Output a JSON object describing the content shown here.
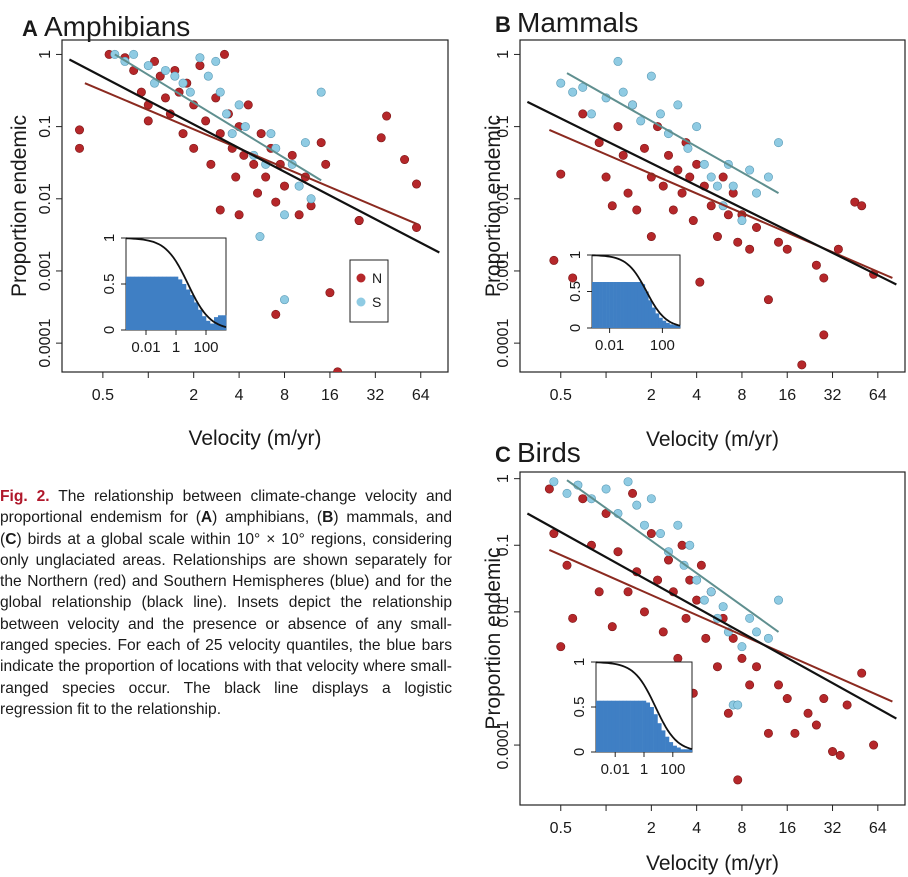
{
  "caption": {
    "fig_label": "Fig. 2.",
    "text_1": " The relationship between climate-change velocity and proportional endemism for (",
    "a": "A",
    "text_2": ") amphibians, (",
    "b": "B",
    "text_3": ") mammals, and (",
    "c": "C",
    "text_4": ") birds at a global scale within 10° × 10° regions, considering only unglaciated areas. Relationships are shown separately for the Northern (red) and Southern Hemispheres (blue) and for the global relationship (black line). Insets depict the relationship between velocity and the presence or absence of any small-ranged species. For each of 25 velocity quantiles, the blue bars indicate the proportion of locations with that velocity where small-ranged species occur. The black line displays a logistic regression fit to the relationship."
  },
  "colors": {
    "north": "#b5272a",
    "south": "#8fcbe3",
    "global_line": "#111111",
    "north_line": "#8b2a20",
    "south_line": "#5f8f8f",
    "bar": "#3f7fc4"
  },
  "chart_data": [
    {
      "panel": "A",
      "title": "Amphibians",
      "type": "scatter",
      "xlabel": "Velocity (m/yr)",
      "ylabel": "Proportion endemic",
      "x_scale": "log2",
      "y_scale": "log10",
      "x_ticks": [
        "0.5",
        "2",
        "4",
        "8",
        "16",
        "32",
        "64"
      ],
      "y_ticks": [
        "0.0001",
        "0.001",
        "0.01",
        "0.1",
        "1"
      ],
      "legend": {
        "position": "lower-right",
        "entries": [
          "N",
          "S"
        ]
      },
      "lines": {
        "global": [
          [
            0.3,
            0.85
          ],
          [
            85,
            0.0018
          ]
        ],
        "north": [
          [
            0.38,
            0.4
          ],
          [
            60,
            0.0045
          ]
        ],
        "south": [
          [
            0.6,
            1.0
          ],
          [
            14,
            0.018
          ]
        ]
      },
      "north": [
        [
          0.35,
          0.09
        ],
        [
          0.35,
          0.05
        ],
        [
          0.55,
          1
        ],
        [
          0.7,
          0.9
        ],
        [
          0.8,
          0.6
        ],
        [
          0.9,
          0.3
        ],
        [
          1,
          0.2
        ],
        [
          1,
          0.12
        ],
        [
          1.1,
          0.8
        ],
        [
          1.2,
          0.5
        ],
        [
          1.3,
          0.25
        ],
        [
          1.4,
          0.15
        ],
        [
          1.5,
          0.6
        ],
        [
          1.6,
          0.3
        ],
        [
          1.7,
          0.08
        ],
        [
          1.8,
          0.4
        ],
        [
          2,
          0.2
        ],
        [
          2,
          0.05
        ],
        [
          2.2,
          0.7
        ],
        [
          2.4,
          0.12
        ],
        [
          2.6,
          0.03
        ],
        [
          2.8,
          0.25
        ],
        [
          3,
          0.08
        ],
        [
          3,
          0.007
        ],
        [
          3.2,
          1
        ],
        [
          3.4,
          0.15
        ],
        [
          3.6,
          0.05
        ],
        [
          3.8,
          0.02
        ],
        [
          4,
          0.1
        ],
        [
          4,
          0.006
        ],
        [
          4.3,
          0.04
        ],
        [
          4.6,
          0.2
        ],
        [
          5,
          0.03
        ],
        [
          5.3,
          0.012
        ],
        [
          5.6,
          0.08
        ],
        [
          6,
          0.02
        ],
        [
          6.5,
          0.05
        ],
        [
          7,
          0.009
        ],
        [
          7,
          0.00025
        ],
        [
          7.5,
          0.03
        ],
        [
          8,
          0.015
        ],
        [
          9,
          0.04
        ],
        [
          10,
          0.006
        ],
        [
          10,
          3e-05
        ],
        [
          11,
          0.02
        ],
        [
          12,
          0.008
        ],
        [
          14,
          0.06
        ],
        [
          15,
          0.03
        ],
        [
          16,
          0.0005
        ],
        [
          18,
          4e-05
        ],
        [
          25,
          0.005
        ],
        [
          25,
          0.005
        ],
        [
          35,
          0.07
        ],
        [
          38,
          0.14
        ],
        [
          50,
          0.035
        ],
        [
          60,
          0.016
        ],
        [
          60,
          0.004
        ]
      ],
      "south": [
        [
          0.6,
          1
        ],
        [
          0.7,
          0.8
        ],
        [
          0.8,
          1
        ],
        [
          1,
          0.7
        ],
        [
          1.1,
          0.4
        ],
        [
          1.3,
          0.6
        ],
        [
          1.5,
          0.5
        ],
        [
          1.7,
          0.4
        ],
        [
          1.9,
          0.3
        ],
        [
          2.2,
          0.9
        ],
        [
          2.5,
          0.5
        ],
        [
          2.8,
          0.8
        ],
        [
          3,
          0.3
        ],
        [
          3.3,
          0.15
        ],
        [
          3.6,
          0.08
        ],
        [
          4,
          0.2
        ],
        [
          4.4,
          0.1
        ],
        [
          5,
          0.04
        ],
        [
          5.5,
          0.003
        ],
        [
          6,
          0.03
        ],
        [
          6.5,
          0.08
        ],
        [
          7,
          0.05
        ],
        [
          8,
          0.006
        ],
        [
          8,
          0.0004
        ],
        [
          9,
          0.03
        ],
        [
          10,
          0.015
        ],
        [
          11,
          0.06
        ],
        [
          12,
          0.01
        ],
        [
          14,
          0.3
        ]
      ],
      "inset": {
        "y_ticks": [
          "0",
          "0.5",
          "1"
        ],
        "x_ticks": [
          "0.01",
          "1",
          "100"
        ],
        "bars": [
          0.58,
          0.58,
          0.58,
          0.58,
          0.58,
          0.58,
          0.58,
          0.58,
          0.58,
          0.58,
          0.58,
          0.58,
          0.58,
          0.55,
          0.5,
          0.44,
          0.38,
          0.3,
          0.22,
          0.15,
          0.1,
          0.07,
          0.14,
          0.16,
          0.16
        ]
      }
    },
    {
      "panel": "B",
      "title": "Mammals",
      "type": "scatter",
      "xlabel": "Velocity (m/yr)",
      "ylabel": "Proportion endemic",
      "x_scale": "log2",
      "y_scale": "log10",
      "x_ticks": [
        "0.5",
        "2",
        "4",
        "8",
        "16",
        "32",
        "64"
      ],
      "y_ticks": [
        "0.0001",
        "0.001",
        "0.01",
        "0.1",
        "1"
      ],
      "lines": {
        "global": [
          [
            0.3,
            0.22
          ],
          [
            85,
            0.00065
          ]
        ],
        "north": [
          [
            0.42,
            0.09
          ],
          [
            80,
            0.0008
          ]
        ],
        "south": [
          [
            0.55,
            0.55
          ],
          [
            14,
            0.012
          ]
        ]
      },
      "north": [
        [
          0.45,
          0.0014
        ],
        [
          0.5,
          0.022
        ],
        [
          0.6,
          0.0008
        ],
        [
          0.7,
          0.15
        ],
        [
          0.9,
          0.06
        ],
        [
          1,
          0.02
        ],
        [
          1.1,
          0.008
        ],
        [
          1.2,
          0.1
        ],
        [
          1.3,
          0.04
        ],
        [
          1.4,
          0.012
        ],
        [
          1.5,
          0.2
        ],
        [
          1.6,
          0.007
        ],
        [
          1.8,
          0.05
        ],
        [
          2,
          0.02
        ],
        [
          2,
          0.003
        ],
        [
          2.2,
          0.1
        ],
        [
          2.4,
          0.015
        ],
        [
          2.6,
          0.04
        ],
        [
          2.8,
          0.007
        ],
        [
          3,
          0.025
        ],
        [
          3.2,
          0.012
        ],
        [
          3.4,
          0.06
        ],
        [
          3.6,
          0.02
        ],
        [
          3.8,
          0.005
        ],
        [
          4,
          0.03
        ],
        [
          4.2,
          0.0007
        ],
        [
          4.5,
          0.015
        ],
        [
          5,
          0.008
        ],
        [
          5.5,
          0.003
        ],
        [
          6,
          0.02
        ],
        [
          6.5,
          0.006
        ],
        [
          7,
          0.012
        ],
        [
          7.5,
          0.0025
        ],
        [
          8,
          0.006
        ],
        [
          9,
          0.002
        ],
        [
          10,
          0.004
        ],
        [
          12,
          0.0004
        ],
        [
          14,
          0.0025
        ],
        [
          16,
          0.002
        ],
        [
          20,
          5e-05
        ],
        [
          25,
          0.0012
        ],
        [
          28,
          0.0008
        ],
        [
          28,
          0.00013
        ],
        [
          35,
          0.002
        ],
        [
          45,
          0.009
        ],
        [
          50,
          0.008
        ],
        [
          60,
          0.0009
        ]
      ],
      "south": [
        [
          0.5,
          0.4
        ],
        [
          0.6,
          0.3
        ],
        [
          0.7,
          0.35
        ],
        [
          0.8,
          0.15
        ],
        [
          1,
          0.25
        ],
        [
          1.2,
          0.8
        ],
        [
          1.3,
          0.3
        ],
        [
          1.5,
          0.2
        ],
        [
          1.7,
          0.12
        ],
        [
          2,
          0.5
        ],
        [
          2.3,
          0.15
        ],
        [
          2.6,
          0.08
        ],
        [
          3,
          0.2
        ],
        [
          3.5,
          0.05
        ],
        [
          4,
          0.1
        ],
        [
          4.5,
          0.03
        ],
        [
          5,
          0.02
        ],
        [
          5.5,
          0.015
        ],
        [
          6,
          0.008
        ],
        [
          6.5,
          0.03
        ],
        [
          7,
          0.015
        ],
        [
          8,
          0.005
        ],
        [
          9,
          0.025
        ],
        [
          10,
          0.012
        ],
        [
          12,
          0.02
        ],
        [
          14,
          0.06
        ]
      ],
      "inset": {
        "y_ticks": [
          "0",
          "0.5",
          "1"
        ],
        "x_ticks": [
          "0.01",
          "100"
        ],
        "bars": [
          0.63,
          0.63,
          0.63,
          0.63,
          0.63,
          0.63,
          0.63,
          0.63,
          0.63,
          0.63,
          0.63,
          0.63,
          0.63,
          0.63,
          0.6,
          0.5,
          0.38,
          0.28,
          0.2,
          0.14,
          0.1,
          0.07,
          0.05,
          0.04,
          0.04
        ]
      }
    },
    {
      "panel": "C",
      "title": "Birds",
      "type": "scatter",
      "xlabel": "Velocity (m/yr)",
      "ylabel": "Proportion endemic",
      "x_scale": "log2",
      "y_scale": "log10",
      "x_ticks": [
        "0.5",
        "2",
        "4",
        "8",
        "16",
        "32",
        "64"
      ],
      "y_ticks": [
        "0.0001",
        "0.01",
        "0.1",
        "1"
      ],
      "lines": {
        "global": [
          [
            0.3,
            0.3
          ],
          [
            85,
            0.00025
          ]
        ],
        "north": [
          [
            0.42,
            0.085
          ],
          [
            80,
            0.00045
          ]
        ],
        "south": [
          [
            0.55,
            0.95
          ],
          [
            14,
            0.005
          ]
        ]
      },
      "north": [
        [
          0.42,
          0.7
        ],
        [
          0.45,
          0.15
        ],
        [
          0.5,
          0.003
        ],
        [
          0.55,
          0.05
        ],
        [
          0.6,
          0.008
        ],
        [
          0.7,
          0.5
        ],
        [
          0.8,
          0.1
        ],
        [
          0.9,
          0.02
        ],
        [
          1,
          0.3
        ],
        [
          1.1,
          0.006
        ],
        [
          1.2,
          0.08
        ],
        [
          1.3,
          0.0015
        ],
        [
          1.4,
          0.02
        ],
        [
          1.5,
          0.6
        ],
        [
          1.6,
          0.04
        ],
        [
          1.8,
          0.01
        ],
        [
          2,
          0.15
        ],
        [
          2,
          0.0008
        ],
        [
          2.2,
          0.03
        ],
        [
          2.4,
          0.005
        ],
        [
          2.6,
          0.06
        ],
        [
          2.8,
          0.02
        ],
        [
          3,
          0.002
        ],
        [
          3.2,
          0.1
        ],
        [
          3.4,
          0.008
        ],
        [
          3.6,
          0.03
        ],
        [
          3.8,
          0.0006
        ],
        [
          4,
          0.015
        ],
        [
          4.3,
          0.05
        ],
        [
          4.6,
          0.004
        ],
        [
          5,
          0.02
        ],
        [
          5.5,
          0.0015
        ],
        [
          6,
          0.008
        ],
        [
          6.5,
          0.0003
        ],
        [
          7,
          0.004
        ],
        [
          7.5,
          3e-05
        ],
        [
          8,
          0.002
        ],
        [
          9,
          0.0008
        ],
        [
          10,
          0.0015
        ],
        [
          12,
          0.00015
        ],
        [
          14,
          0.0008
        ],
        [
          16,
          0.0005
        ],
        [
          18,
          0.00015
        ],
        [
          22,
          0.0003
        ],
        [
          25,
          0.0002
        ],
        [
          28,
          0.0005
        ],
        [
          32,
          8e-05
        ],
        [
          36,
          7e-05
        ],
        [
          40,
          0.0004
        ],
        [
          50,
          0.0012
        ],
        [
          60,
          0.0001
        ]
      ],
      "south": [
        [
          0.45,
          0.9
        ],
        [
          0.55,
          0.6
        ],
        [
          0.65,
          0.8
        ],
        [
          0.8,
          0.5
        ],
        [
          1,
          0.7
        ],
        [
          1.2,
          0.3
        ],
        [
          1.4,
          0.9
        ],
        [
          1.6,
          0.4
        ],
        [
          1.8,
          0.2
        ],
        [
          2,
          0.5
        ],
        [
          2.3,
          0.15
        ],
        [
          2.6,
          0.08
        ],
        [
          3,
          0.2
        ],
        [
          3.3,
          0.05
        ],
        [
          3.6,
          0.1
        ],
        [
          4,
          0.03
        ],
        [
          4.5,
          0.015
        ],
        [
          5,
          0.02
        ],
        [
          5.5,
          0.008
        ],
        [
          6,
          0.012
        ],
        [
          6.5,
          0.005
        ],
        [
          7,
          0.0004
        ],
        [
          7.5,
          0.0004
        ],
        [
          8,
          0.003
        ],
        [
          9,
          0.008
        ],
        [
          10,
          0.005
        ],
        [
          12,
          0.004
        ],
        [
          14,
          0.015
        ]
      ],
      "inset": {
        "y_ticks": [
          "0",
          "0.5",
          "1"
        ],
        "x_ticks": [
          "0.01",
          "1",
          "100"
        ],
        "bars": [
          0.57,
          0.57,
          0.57,
          0.57,
          0.57,
          0.57,
          0.57,
          0.57,
          0.57,
          0.57,
          0.57,
          0.57,
          0.57,
          0.55,
          0.5,
          0.42,
          0.32,
          0.24,
          0.17,
          0.11,
          0.07,
          0.05,
          0.03,
          0.03,
          0.03
        ]
      }
    }
  ]
}
